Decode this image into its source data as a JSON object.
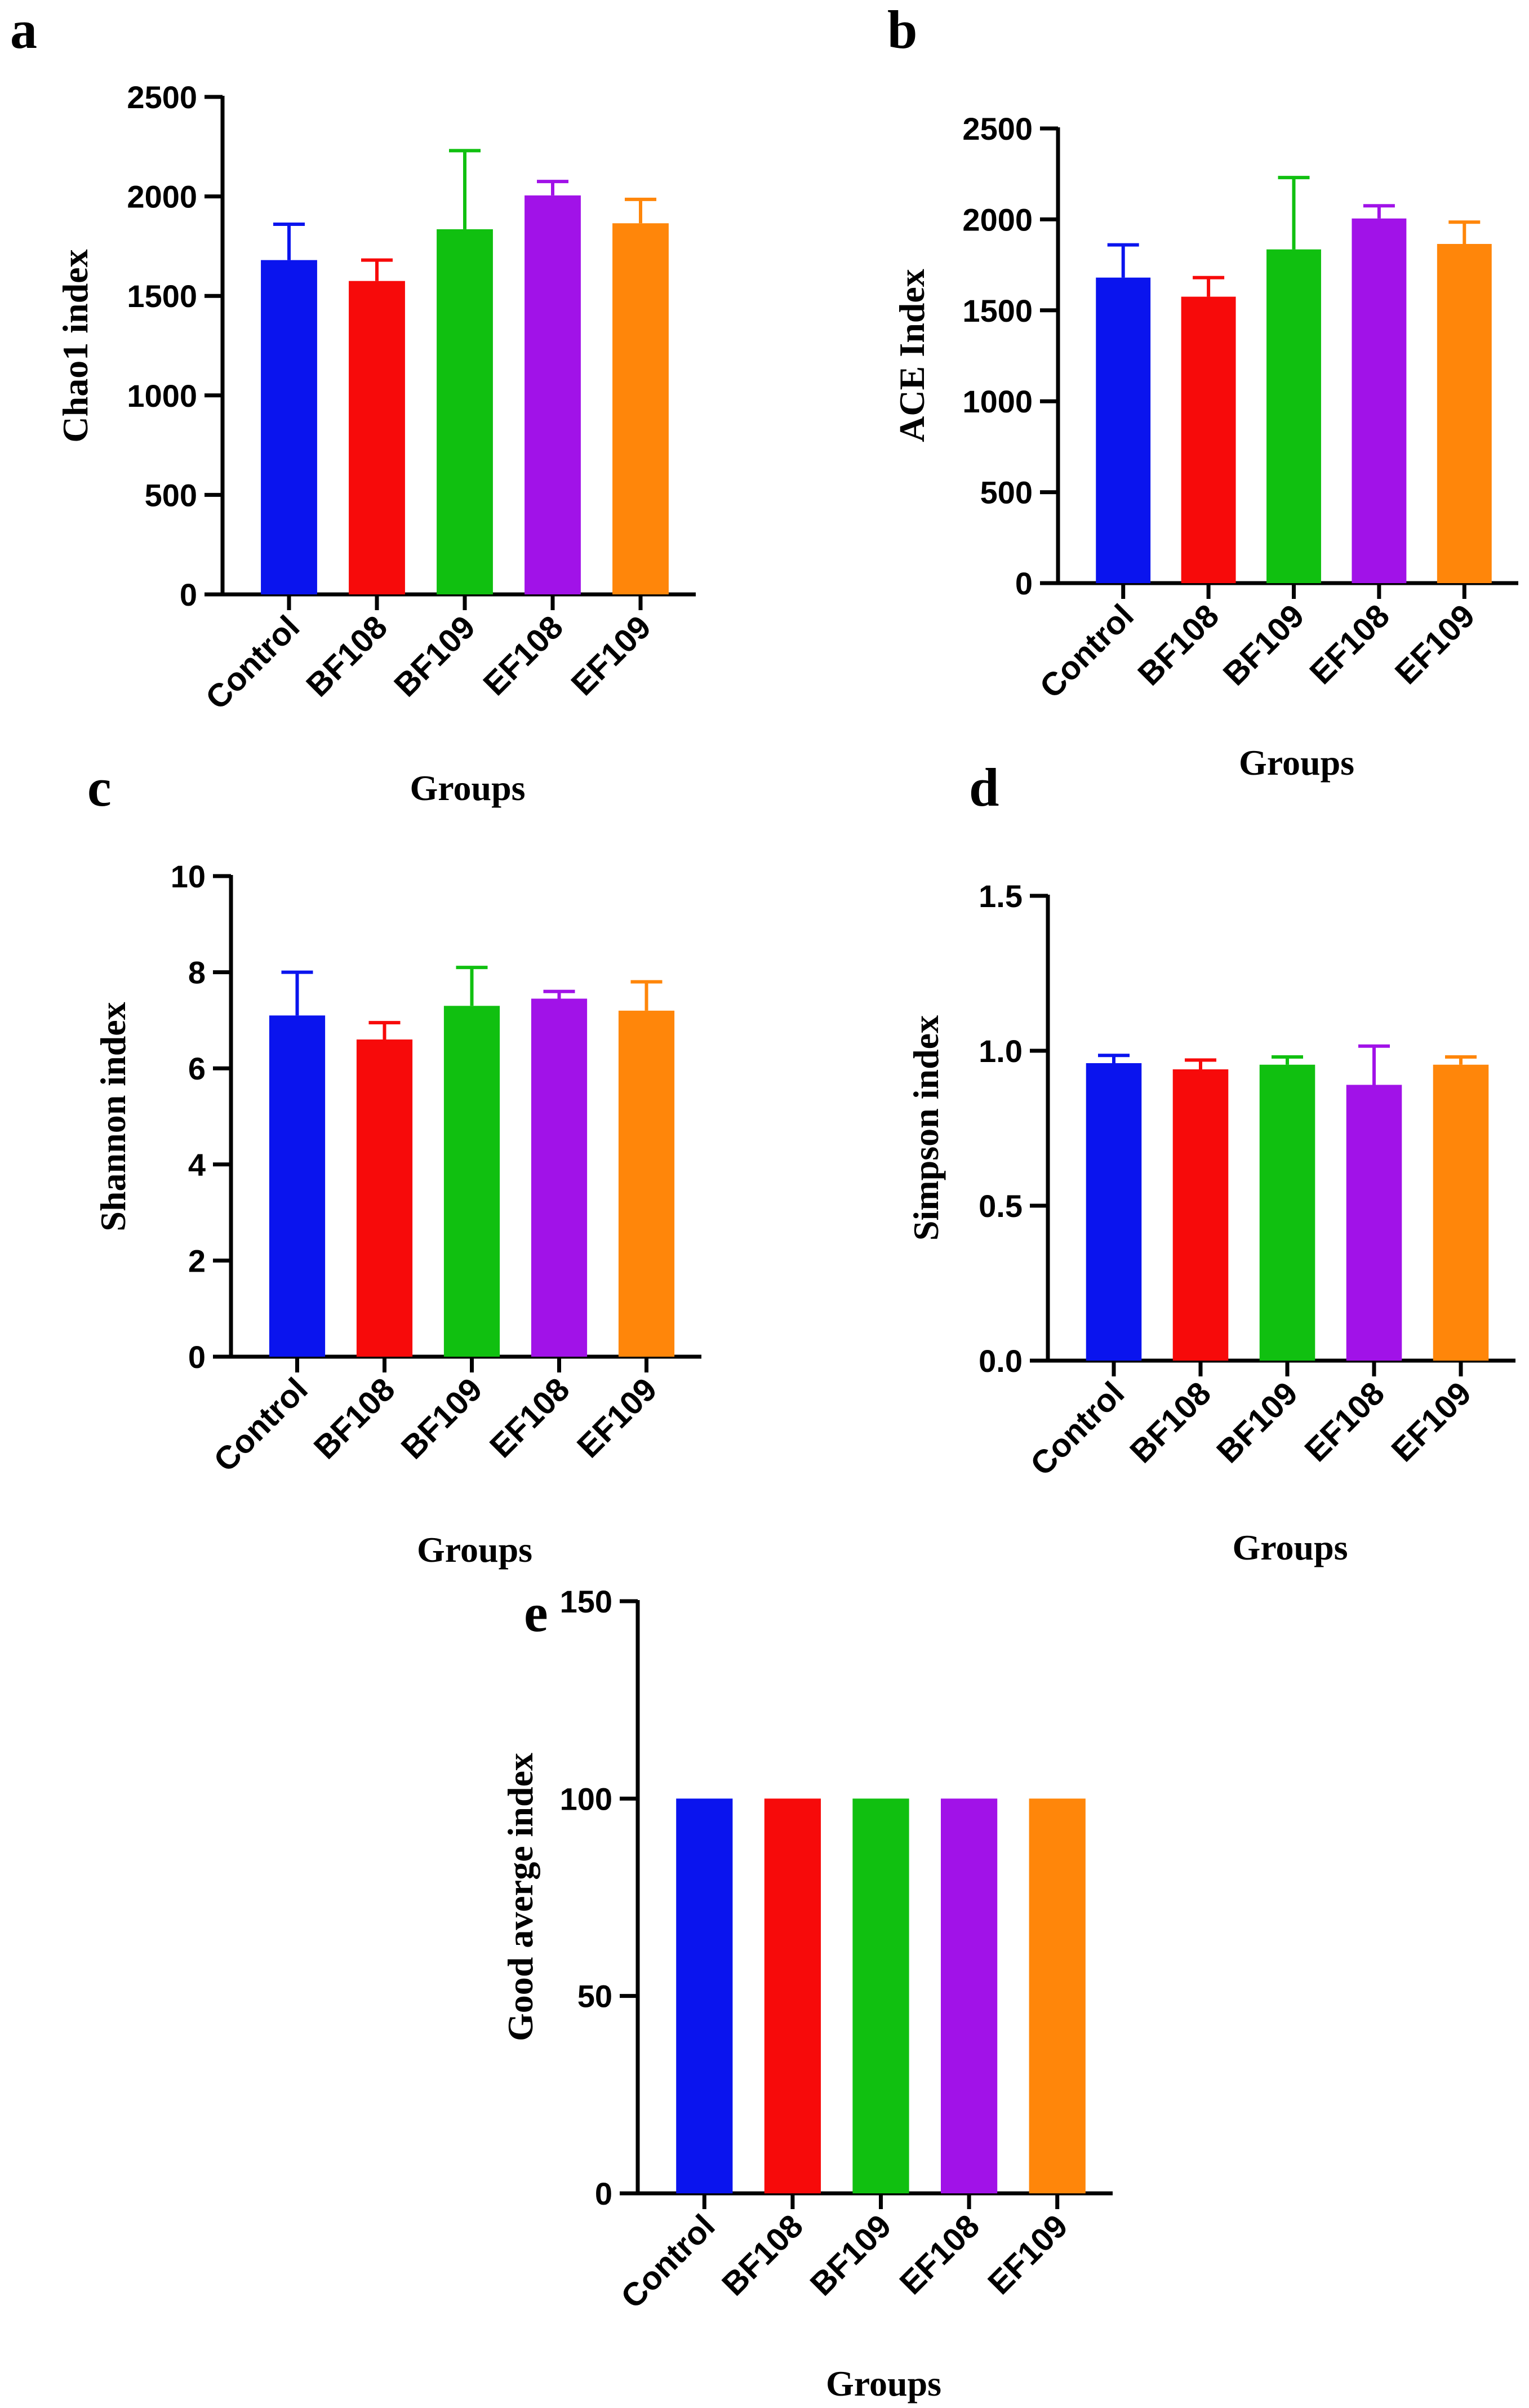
{
  "figure": {
    "palette": {
      "Control": "#0a14ee",
      "BF108": "#f70a0a",
      "BF109": "#10c010",
      "EF108": "#a112e8",
      "EF109": "#ff860a"
    }
  },
  "chart_data": [
    {
      "panel": "a",
      "type": "bar",
      "categories": [
        "Control",
        "BF108",
        "BF109",
        "EF108",
        "EF109"
      ],
      "values": [
        1680,
        1575,
        1835,
        2005,
        1865
      ],
      "errors": [
        180,
        105,
        395,
        70,
        120
      ],
      "ylabel": "Chao1 index",
      "xlabel": "Groups",
      "ylim": [
        0,
        2500
      ],
      "yticks": [
        0,
        500,
        1000,
        1500,
        2000,
        2500
      ],
      "ytick_labels": [
        "0",
        "500",
        "1000",
        "1500",
        "2000",
        "2500"
      ]
    },
    {
      "panel": "b",
      "type": "bar",
      "categories": [
        "Control",
        "BF108",
        "BF109",
        "EF108",
        "EF109"
      ],
      "values": [
        1680,
        1575,
        1835,
        2005,
        1865
      ],
      "errors": [
        180,
        105,
        395,
        70,
        120
      ],
      "ylabel": "ACE Index",
      "xlabel": "Groups",
      "ylim": [
        0,
        2500
      ],
      "yticks": [
        0,
        500,
        1000,
        1500,
        2000,
        2500
      ],
      "ytick_labels": [
        "0",
        "500",
        "1000",
        "1500",
        "2000",
        "2500"
      ]
    },
    {
      "panel": "c",
      "type": "bar",
      "categories": [
        "Control",
        "BF108",
        "BF109",
        "EF108",
        "EF109"
      ],
      "values": [
        7.1,
        6.6,
        7.3,
        7.45,
        7.2
      ],
      "errors": [
        0.9,
        0.35,
        0.8,
        0.15,
        0.6
      ],
      "ylabel": "Shannon index",
      "xlabel": "Groups",
      "ylim": [
        0,
        10
      ],
      "yticks": [
        0,
        2,
        4,
        6,
        8,
        10
      ],
      "ytick_labels": [
        "0",
        "2",
        "4",
        "6",
        "8",
        "10"
      ]
    },
    {
      "panel": "d",
      "type": "bar",
      "categories": [
        "Control",
        "BF108",
        "BF109",
        "EF108",
        "EF109"
      ],
      "values": [
        0.96,
        0.94,
        0.955,
        0.89,
        0.955
      ],
      "errors": [
        0.025,
        0.03,
        0.025,
        0.125,
        0.025
      ],
      "ylabel": "Simpson index",
      "xlabel": "Groups",
      "ylim": [
        0,
        1.5
      ],
      "yticks": [
        0,
        0.5,
        1.0,
        1.5
      ],
      "ytick_labels": [
        "0.0",
        "0.5",
        "1.0",
        "1.5"
      ]
    },
    {
      "panel": "e",
      "type": "bar",
      "categories": [
        "Control",
        "BF108",
        "BF109",
        "EF108",
        "EF109"
      ],
      "values": [
        100,
        100,
        100,
        100,
        100
      ],
      "errors": [
        0,
        0,
        0,
        0,
        0
      ],
      "ylabel": "Good averge index",
      "xlabel": "Groups",
      "ylim": [
        0,
        150
      ],
      "yticks": [
        0,
        50,
        100,
        150
      ],
      "ytick_labels": [
        "0",
        "50",
        "100",
        "150"
      ]
    }
  ]
}
